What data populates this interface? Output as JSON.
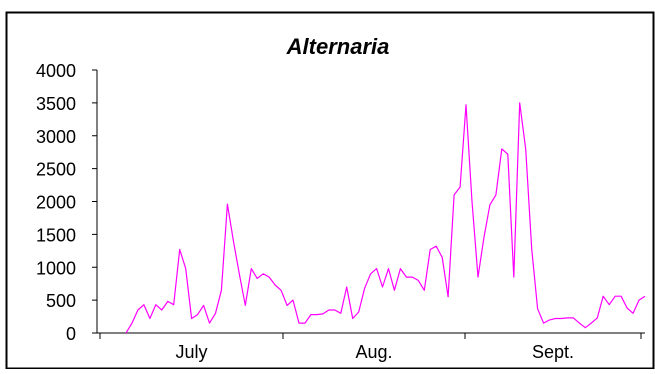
{
  "chart_data": {
    "type": "line",
    "title": "Alternaria",
    "xlabel": "",
    "ylabel": "",
    "ylim": [
      0,
      4000
    ],
    "yticks": [
      0,
      500,
      1000,
      1500,
      2000,
      2500,
      3000,
      3500,
      4000
    ],
    "month_labels": [
      "July",
      "Aug.",
      "Sept."
    ],
    "grid": false,
    "legend": "none",
    "line_color": "#ff00ff",
    "series": [
      {
        "values": [
          0,
          150,
          350,
          430,
          220,
          430,
          350,
          480,
          430,
          1270,
          980,
          220,
          280,
          420,
          150,
          300,
          650,
          1960,
          1400,
          900,
          420,
          980,
          830,
          900,
          850,
          730,
          650,
          420,
          500,
          150,
          150,
          280,
          280,
          290,
          350,
          350,
          300,
          700,
          220,
          320,
          680,
          900,
          980,
          700,
          980,
          650,
          980,
          850,
          850,
          800,
          650,
          1270,
          1320,
          1150,
          550,
          2100,
          2220,
          3470,
          2000,
          850,
          1450,
          1950,
          2100,
          2800,
          2720,
          850,
          3500,
          2800,
          1280,
          370,
          150,
          200,
          220,
          220,
          230,
          230,
          150,
          80,
          150,
          230,
          560,
          430,
          560,
          560,
          380,
          300,
          500,
          560
        ]
      }
    ]
  }
}
